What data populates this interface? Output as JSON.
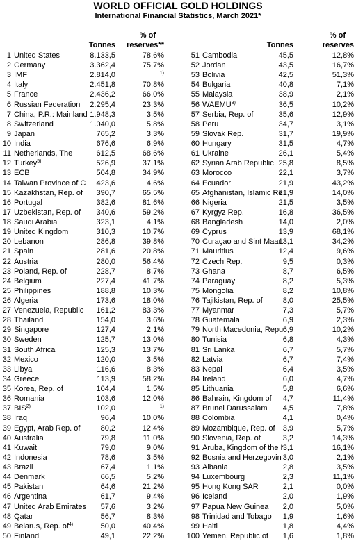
{
  "title": "WORLD OFFICIAL GOLD HOLDINGS",
  "subtitle": "International Financial Statistics, March 2021*",
  "columns": [
    {
      "header": {
        "pct_top": "% of",
        "tonnes": "Tonnes",
        "pct": "reserves**"
      },
      "rows": [
        {
          "n": 1,
          "c": "United States",
          "t": "8.133,5",
          "p": "78,6%"
        },
        {
          "n": 2,
          "c": "Germany",
          "t": "3.362,4",
          "p": "75,7%"
        },
        {
          "n": 3,
          "c": "IMF",
          "t": "2.814,0",
          "pn": "1)"
        },
        {
          "n": 4,
          "c": "Italy",
          "t": "2.451,8",
          "p": "70,8%"
        },
        {
          "n": 5,
          "c": "France",
          "t": "2.436,2",
          "p": "66,0%"
        },
        {
          "n": 6,
          "c": "Russian Federation",
          "t": "2.295,4",
          "p": "23,3%"
        },
        {
          "n": 7,
          "c": "China, P.R.: Mainland",
          "t": "1.948,3",
          "p": "3,5%"
        },
        {
          "n": 8,
          "c": "Switzerland",
          "t": "1.040,0",
          "p": "5,8%"
        },
        {
          "n": 9,
          "c": "Japan",
          "t": "765,2",
          "p": "3,3%"
        },
        {
          "n": 10,
          "c": "India",
          "t": "676,6",
          "p": "6,9%"
        },
        {
          "n": 11,
          "c": "Netherlands, The",
          "t": "612,5",
          "p": "68,6%"
        },
        {
          "n": 12,
          "c": "Turkey",
          "s": "5)",
          "t": "526,9",
          "p": "37,1%"
        },
        {
          "n": 13,
          "c": "ECB",
          "t": "504,8",
          "p": "34,9%"
        },
        {
          "n": 14,
          "c": "Taiwan Province of C",
          "t": "423,6",
          "p": "4,6%"
        },
        {
          "n": 15,
          "c": "Kazakhstan, Rep. of",
          "t": "390,7",
          "p": "65,5%"
        },
        {
          "n": 16,
          "c": "Portugal",
          "t": "382,6",
          "p": "81,6%"
        },
        {
          "n": 17,
          "c": "Uzbekistan, Rep. of",
          "t": "340,6",
          "p": "59,2%"
        },
        {
          "n": 18,
          "c": "Saudi Arabia",
          "t": "323,1",
          "p": "4,1%"
        },
        {
          "n": 19,
          "c": "United Kingdom",
          "t": "310,3",
          "p": "10,7%"
        },
        {
          "n": 20,
          "c": "Lebanon",
          "t": "286,8",
          "p": "39,8%"
        },
        {
          "n": 21,
          "c": "Spain",
          "t": "281,6",
          "p": "20,8%"
        },
        {
          "n": 22,
          "c": "Austria",
          "t": "280,0",
          "p": "56,4%"
        },
        {
          "n": 23,
          "c": "Poland, Rep. of",
          "t": "228,7",
          "p": "8,7%"
        },
        {
          "n": 24,
          "c": "Belgium",
          "t": "227,4",
          "p": "41,7%"
        },
        {
          "n": 25,
          "c": "Philippines",
          "t": "188,8",
          "p": "10,3%"
        },
        {
          "n": 26,
          "c": "Algeria",
          "t": "173,6",
          "p": "18,0%"
        },
        {
          "n": 27,
          "c": "Venezuela, Republic",
          "t": "161,2",
          "p": "83,3%"
        },
        {
          "n": 28,
          "c": "Thailand",
          "t": "154,0",
          "p": "3,6%"
        },
        {
          "n": 29,
          "c": "Singapore",
          "t": "127,4",
          "p": "2,1%"
        },
        {
          "n": 30,
          "c": "Sweden",
          "t": "125,7",
          "p": "13,0%"
        },
        {
          "n": 31,
          "c": "South Africa",
          "t": "125,3",
          "p": "13,7%"
        },
        {
          "n": 32,
          "c": "Mexico",
          "t": "120,0",
          "p": "3,5%"
        },
        {
          "n": 33,
          "c": "Libya",
          "t": "116,6",
          "p": "8,3%"
        },
        {
          "n": 34,
          "c": "Greece",
          "t": "113,9",
          "p": "58,2%"
        },
        {
          "n": 35,
          "c": "Korea, Rep. of",
          "t": "104,4",
          "p": "1,5%"
        },
        {
          "n": 36,
          "c": "Romania",
          "t": "103,6",
          "p": "12,0%"
        },
        {
          "n": 37,
          "c": "BIS",
          "s": "2)",
          "t": "102,0",
          "pn": "1)"
        },
        {
          "n": 38,
          "c": "Iraq",
          "t": "96,4",
          "p": "10,0%"
        },
        {
          "n": 39,
          "c": "Egypt, Arab Rep. of",
          "t": "80,2",
          "p": "12,4%"
        },
        {
          "n": 40,
          "c": "Australia",
          "t": "79,8",
          "p": "11,0%"
        },
        {
          "n": 41,
          "c": "Kuwait",
          "t": "79,0",
          "p": "9,0%"
        },
        {
          "n": 42,
          "c": "Indonesia",
          "t": "78,6",
          "p": "3,5%"
        },
        {
          "n": 43,
          "c": "Brazil",
          "t": "67,4",
          "p": "1,1%"
        },
        {
          "n": 44,
          "c": "Denmark",
          "t": "66,5",
          "p": "5,2%"
        },
        {
          "n": 45,
          "c": "Pakistan",
          "t": "64,6",
          "p": "21,2%"
        },
        {
          "n": 46,
          "c": "Argentina",
          "t": "61,7",
          "p": "9,4%"
        },
        {
          "n": 47,
          "c": "United Arab Emirates",
          "t": "57,6",
          "p": "3,2%"
        },
        {
          "n": 48,
          "c": "Qatar",
          "t": "56,7",
          "p": "8,3%"
        },
        {
          "n": 49,
          "c": "Belarus, Rep. of",
          "s": "4)",
          "t": "50,0",
          "p": "40,4%"
        },
        {
          "n": 50,
          "c": "Finland",
          "t": "49,1",
          "p": "22,2%"
        }
      ]
    },
    {
      "header": {
        "pct_top": "% of",
        "tonnes": "Tonnes",
        "pct": "reserves"
      },
      "rows": [
        {
          "n": 51,
          "c": "Cambodia",
          "t": "45,5",
          "p": "12,8%"
        },
        {
          "n": 52,
          "c": "Jordan",
          "t": "43,5",
          "p": "16,7%"
        },
        {
          "n": 53,
          "c": "Bolivia",
          "t": "42,5",
          "p": "51,3%"
        },
        {
          "n": 54,
          "c": "Bulgaria",
          "t": "40,8",
          "p": "7,1%"
        },
        {
          "n": 55,
          "c": "Malaysia",
          "t": "38,9",
          "p": "2,1%"
        },
        {
          "n": 56,
          "c": "WAEMU",
          "s": "3)",
          "t": "36,5",
          "p": "10,2%"
        },
        {
          "n": 57,
          "c": "Serbia, Rep. of",
          "t": "35,6",
          "p": "12,9%"
        },
        {
          "n": 58,
          "c": "Peru",
          "t": "34,7",
          "p": "3,1%"
        },
        {
          "n": 59,
          "c": "Slovak Rep.",
          "t": "31,7",
          "p": "19,9%"
        },
        {
          "n": 60,
          "c": "Hungary",
          "t": "31,5",
          "p": "4,7%"
        },
        {
          "n": 61,
          "c": "Ukraine",
          "t": "26,1",
          "p": "5,4%"
        },
        {
          "n": 62,
          "c": "Syrian Arab Republic",
          "t": "25,8",
          "p": "8,5%"
        },
        {
          "n": 63,
          "c": "Morocco",
          "t": "22,1",
          "p": "3,7%"
        },
        {
          "n": 64,
          "c": "Ecuador",
          "t": "21,9",
          "p": "43,2%"
        },
        {
          "n": 65,
          "c": "Afghanistan, Islamic Re",
          "t": "21,9",
          "p": "14,0%"
        },
        {
          "n": 66,
          "c": "Nigeria",
          "t": "21,5",
          "p": "3,5%"
        },
        {
          "n": 67,
          "c": "Kyrgyz Rep.",
          "t": "16,8",
          "p": "36,5%"
        },
        {
          "n": 68,
          "c": "Bangladesh",
          "t": "14,0",
          "p": "2,0%"
        },
        {
          "n": 69,
          "c": "Cyprus",
          "t": "13,9",
          "p": "68,1%"
        },
        {
          "n": 70,
          "c": "Curaçao and Sint Maart",
          "t": "13,1",
          "p": "34,2%"
        },
        {
          "n": 71,
          "c": "Mauritius",
          "t": "12,4",
          "p": "9,6%"
        },
        {
          "n": 72,
          "c": "Czech Rep.",
          "t": "9,5",
          "p": "0,3%"
        },
        {
          "n": 73,
          "c": "Ghana",
          "t": "8,7",
          "p": "6,5%"
        },
        {
          "n": 74,
          "c": "Paraguay",
          "t": "8,2",
          "p": "5,3%"
        },
        {
          "n": 75,
          "c": "Mongolia",
          "t": "8,2",
          "p": "10,8%"
        },
        {
          "n": 76,
          "c": "Tajikistan, Rep. of",
          "t": "8,0",
          "p": "25,5%"
        },
        {
          "n": 77,
          "c": "Myanmar",
          "t": "7,3",
          "p": "5,7%"
        },
        {
          "n": 78,
          "c": "Guatemala",
          "t": "6,9",
          "p": "2,3%"
        },
        {
          "n": 79,
          "c": "North Macedonia, Repu",
          "t": "6,9",
          "p": "10,2%"
        },
        {
          "n": 80,
          "c": "Tunisia",
          "t": "6,8",
          "p": "4,3%"
        },
        {
          "n": 81,
          "c": "Sri Lanka",
          "t": "6,7",
          "p": "5,7%"
        },
        {
          "n": 82,
          "c": "Latvia",
          "t": "6,7",
          "p": "7,4%"
        },
        {
          "n": 83,
          "c": "Nepal",
          "t": "6,4",
          "p": "3,5%"
        },
        {
          "n": 84,
          "c": "Ireland",
          "t": "6,0",
          "p": "4,7%"
        },
        {
          "n": 85,
          "c": "Lithuania",
          "t": "5,8",
          "p": "6,6%"
        },
        {
          "n": 86,
          "c": "Bahrain, Kingdom of",
          "t": "4,7",
          "p": "11,4%"
        },
        {
          "n": 87,
          "c": "Brunei Darussalam",
          "t": "4,5",
          "p": "7,8%"
        },
        {
          "n": 88,
          "c": "Colombia",
          "t": "4,1",
          "p": "0,4%"
        },
        {
          "n": 89,
          "c": "Mozambique, Rep. of",
          "t": "3,9",
          "p": "5,7%"
        },
        {
          "n": 90,
          "c": "Slovenia, Rep. of",
          "t": "3,2",
          "p": "14,3%"
        },
        {
          "n": 91,
          "c": "Aruba, Kingdom of the N",
          "t": "3,1",
          "p": "16,1%"
        },
        {
          "n": 92,
          "c": "Bosnia and Herzegovin",
          "t": "3,0",
          "p": "2,1%"
        },
        {
          "n": 93,
          "c": "Albania",
          "t": "2,8",
          "p": "3,5%"
        },
        {
          "n": 94,
          "c": "Luxembourg",
          "t": "2,3",
          "p": "11,1%"
        },
        {
          "n": 95,
          "c": "Hong Kong SAR",
          "t": "2,1",
          "p": "0,0%"
        },
        {
          "n": 96,
          "c": "Iceland",
          "t": "2,0",
          "p": "1,9%"
        },
        {
          "n": 97,
          "c": "Papua New Guinea",
          "t": "2,0",
          "p": "5,0%"
        },
        {
          "n": 98,
          "c": "Trinidad and Tobago",
          "t": "1,9",
          "p": "1,6%"
        },
        {
          "n": 99,
          "c": "Haiti",
          "t": "1,8",
          "p": "4,4%"
        },
        {
          "n": 100,
          "c": "Yemen, Republic of",
          "t": "1,6",
          "p": "1,8%"
        }
      ]
    }
  ]
}
